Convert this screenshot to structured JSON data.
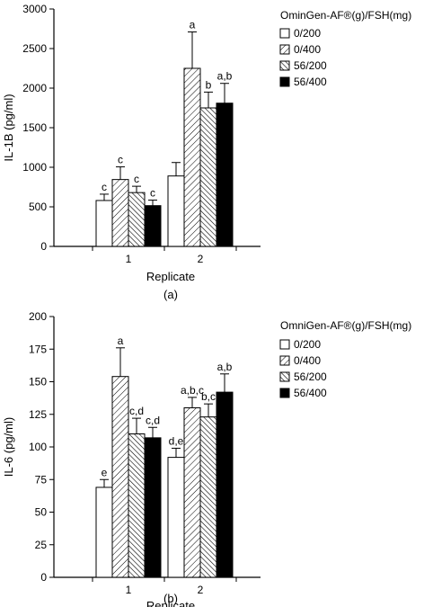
{
  "chart_data": [
    {
      "type": "bar",
      "panel_label": "(a)",
      "xlabel": "Replicate",
      "ylabel": "IL-1B (pg/ml)",
      "ylim": [
        0,
        3000
      ],
      "yticks": [
        0,
        500,
        1000,
        1500,
        2000,
        2500,
        3000
      ],
      "categories": [
        "1",
        "2"
      ],
      "legend": {
        "title": "OminGen-AF®(g)/FSH(mg)",
        "placement": "top-right",
        "entries": [
          "0/200",
          "0/400",
          "56/200",
          "56/400"
        ]
      },
      "series": [
        {
          "name": "0/200",
          "pattern": "white",
          "values": [
            580,
            890
          ],
          "errors": [
            80,
            170
          ],
          "labels": [
            "c",
            ""
          ]
        },
        {
          "name": "0/400",
          "pattern": "diagonal",
          "values": [
            845,
            2250
          ],
          "errors": [
            160,
            460
          ],
          "labels": [
            "c",
            "a"
          ]
        },
        {
          "name": "56/200",
          "pattern": "hatch",
          "values": [
            680,
            1750
          ],
          "errors": [
            80,
            200
          ],
          "labels": [
            "c",
            "b"
          ]
        },
        {
          "name": "56/400",
          "pattern": "black",
          "values": [
            515,
            1810
          ],
          "errors": [
            70,
            250
          ],
          "labels": [
            "c",
            "a,b"
          ]
        }
      ]
    },
    {
      "type": "bar",
      "panel_label": "(b)",
      "xlabel": "Replicate",
      "ylabel": "IL-6 (pg/ml)",
      "ylim": [
        0,
        200
      ],
      "yticks": [
        0,
        25,
        50,
        75,
        100,
        125,
        150,
        175,
        200
      ],
      "categories": [
        "1",
        "2"
      ],
      "legend": {
        "title": "OmniGen-AF®(g)/FSH(mg)",
        "placement": "top-right",
        "entries": [
          "0/200",
          "0/400",
          "56/200",
          "56/400"
        ]
      },
      "series": [
        {
          "name": "0/200",
          "pattern": "white",
          "values": [
            69,
            92
          ],
          "errors": [
            6,
            7
          ],
          "labels": [
            "e",
            "d,e"
          ]
        },
        {
          "name": "0/400",
          "pattern": "diagonal",
          "values": [
            154,
            130
          ],
          "errors": [
            22,
            8
          ],
          "labels": [
            "a",
            "a,b,c"
          ]
        },
        {
          "name": "56/200",
          "pattern": "hatch",
          "values": [
            110,
            123
          ],
          "errors": [
            12,
            10
          ],
          "labels": [
            "c,d",
            "b,c"
          ]
        },
        {
          "name": "56/400",
          "pattern": "black",
          "values": [
            107,
            142
          ],
          "errors": [
            8,
            14
          ],
          "labels": [
            "c,d",
            "a,b"
          ]
        }
      ]
    }
  ]
}
